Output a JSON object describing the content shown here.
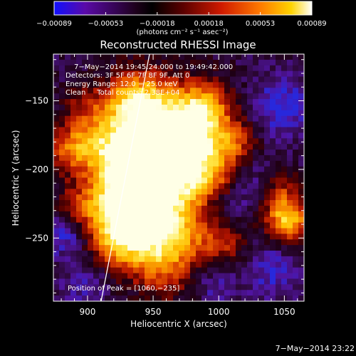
{
  "colorbar": {
    "ticks": [
      "−0.00089",
      "−0.00053",
      "−0.00018",
      "0.00018",
      "0.00053",
      "0.00089"
    ],
    "unit_label": "(photons cm⁻² s⁻¹ asec⁻²)",
    "range": [
      -0.00089,
      0.00089
    ],
    "colors": [
      "#1010ff",
      "#5a0aa8",
      "#1c001a",
      "#000000",
      "#5a0000",
      "#d01a00",
      "#ff7a00",
      "#ffd400",
      "#ffffff"
    ]
  },
  "plot": {
    "title": "Reconstructed RHESSI Image",
    "info_lines": [
      "7−May−2014 19:45:24.000 to 19:49:42.000",
      "Detectors: 3F 5F 6F 7F 8F 9F, Att 0",
      "Energy Range: 12.0 − 25.0 keV",
      "Clean     Total counts: 2.38E+04"
    ],
    "peak_label": "Position of Peak = [1060,−235]",
    "xlabel": "Heliocentric X (arcsec)",
    "ylabel": "Heliocentric Y (arcsec)",
    "xticks": [
      "900",
      "950",
      "1000",
      "1050"
    ],
    "yticks": [
      "−150",
      "−200",
      "−250"
    ],
    "x_range": [
      874,
      1065
    ],
    "y_range": [
      -296,
      -116
    ]
  },
  "timestamp": "7−May−2014 23:22"
}
